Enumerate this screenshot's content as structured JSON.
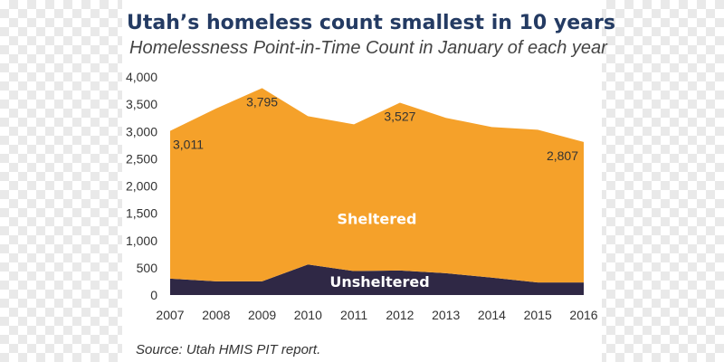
{
  "chart_data": {
    "type": "area",
    "title": "Utah’s homeless count smallest in 10 years",
    "subtitle": "Homelessness Point-in-Time Count in January of each year",
    "x": [
      "2007",
      "2008",
      "2009",
      "2010",
      "2011",
      "2012",
      "2013",
      "2014",
      "2015",
      "2016"
    ],
    "series": [
      {
        "name": "Unsheltered",
        "color": "#2f2845",
        "values": [
          300,
          250,
          250,
          560,
          440,
          450,
          400,
          320,
          230,
          230
        ]
      },
      {
        "name": "Sheltered",
        "color": "#f5a12a",
        "values": [
          2711,
          3170,
          3545,
          2720,
          2690,
          3077,
          2850,
          2760,
          2800,
          2577
        ]
      }
    ],
    "totals": [
      3011,
      3420,
      3795,
      3280,
      3130,
      3527,
      3250,
      3080,
      3030,
      2807
    ],
    "data_labels": [
      {
        "x": "2007",
        "text": "3,011"
      },
      {
        "x": "2009",
        "text": "3,795"
      },
      {
        "x": "2012",
        "text": "3,527"
      },
      {
        "x": "2016",
        "text": "2,807"
      }
    ],
    "yticks": [
      "0",
      "500",
      "1,000",
      "1,500",
      "2,000",
      "2,500",
      "3,000",
      "3,500",
      "4,000"
    ],
    "ylim": [
      0,
      4000
    ],
    "xlabel": "",
    "ylabel": "",
    "grid": false,
    "stacked": true
  },
  "source": "Source: Utah HMIS PIT report."
}
